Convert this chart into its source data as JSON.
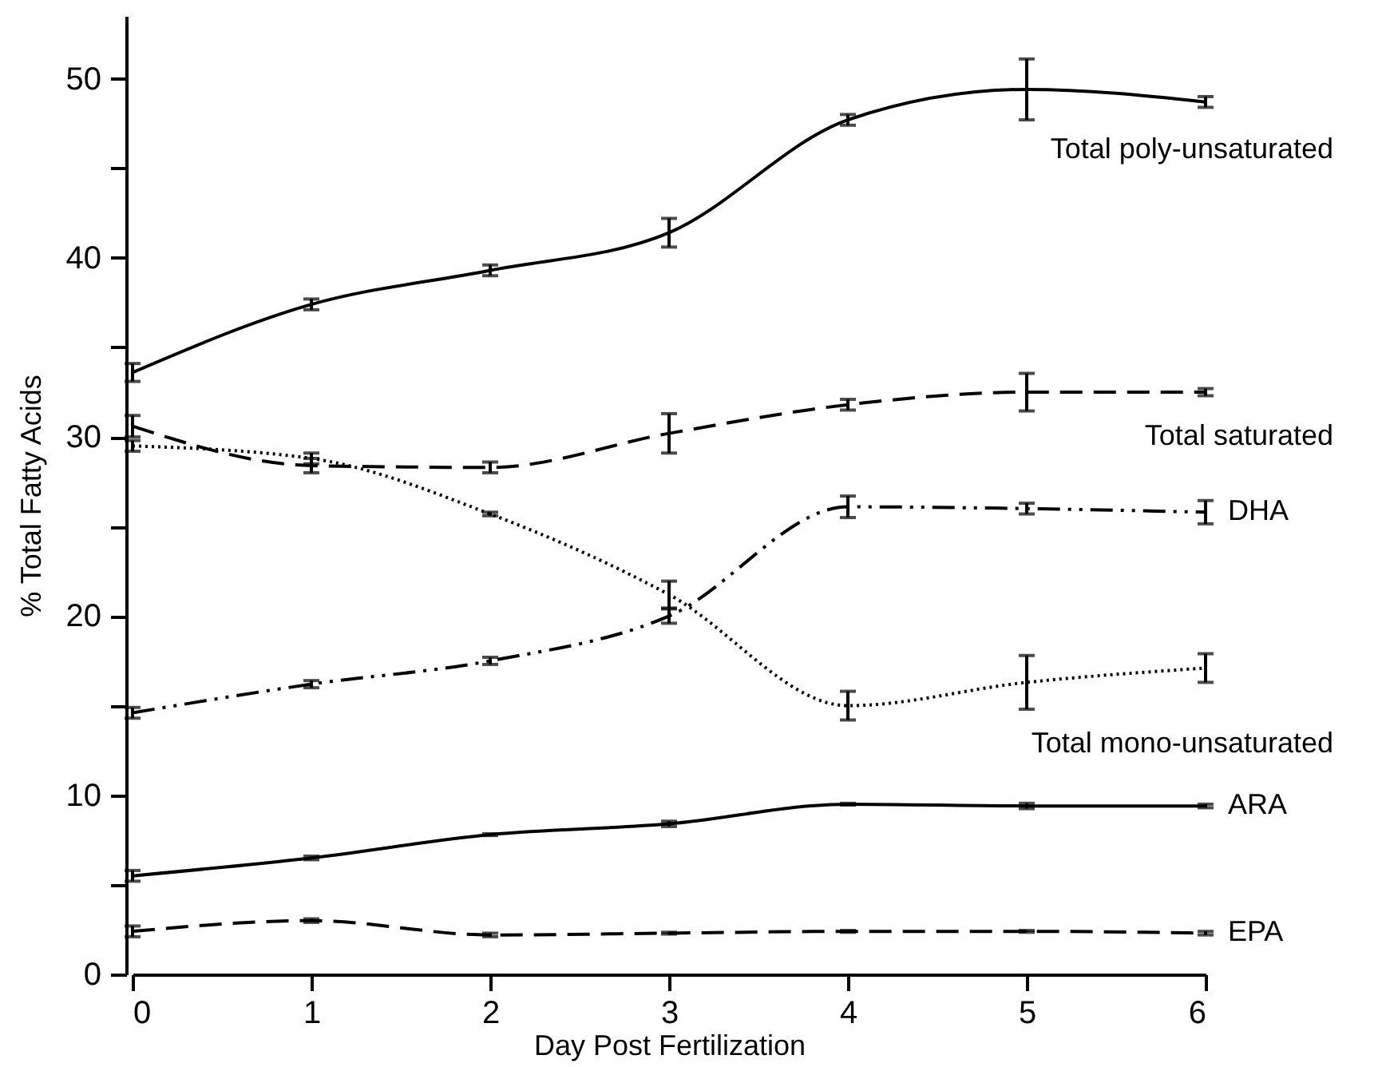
{
  "chart_data": {
    "type": "line",
    "xlabel": "Day Post Fertilization",
    "ylabel": "% Total Fatty Acids",
    "x": [
      0,
      1,
      2,
      3,
      4,
      5,
      6
    ],
    "xlim": [
      0,
      6
    ],
    "xticks": [
      0,
      1,
      2,
      3,
      4,
      5,
      6
    ],
    "ylim": [
      0,
      53.5
    ],
    "yticks": [
      0,
      {
        "value": 5,
        "label": null
      },
      10,
      {
        "value": 15,
        "label": null
      },
      20,
      {
        "value": 25,
        "label": null
      },
      30,
      {
        "value": 35,
        "label": null
      },
      40,
      {
        "value": 45,
        "label": null
      },
      50
    ],
    "grid": false,
    "legend": false,
    "marker": "none",
    "series": [
      {
        "name": "Total poly-unsaturated",
        "color": "#000000",
        "line_style": "solid",
        "values": [
          33.6,
          37.4,
          39.3,
          41.4,
          47.7,
          49.4,
          48.7
        ],
        "errors": [
          0.5,
          0.3,
          0.3,
          0.8,
          0.3,
          1.7,
          0.3
        ]
      },
      {
        "name": "Total saturated",
        "color": "#000000",
        "line_style": "dashed",
        "values": [
          30.6,
          28.4,
          28.3,
          30.2,
          31.8,
          32.5,
          32.5
        ],
        "errors": [
          0.6,
          0.4,
          0.3,
          1.1,
          0.3,
          1.05,
          0.2
        ]
      },
      {
        "name": "DHA",
        "color": "#000000",
        "line_style": "dashdot",
        "values": [
          14.6,
          16.2,
          17.5,
          20.0,
          26.1,
          26.0,
          25.8
        ],
        "errors": [
          0.3,
          0.2,
          0.2,
          0.4,
          0.6,
          0.3,
          0.65
        ]
      },
      {
        "name": "Total mono-unsaturated",
        "color": "#000000",
        "line_style": "dotted",
        "values": [
          29.5,
          28.8,
          25.7,
          21.2,
          15.0,
          16.3,
          17.1
        ],
        "errors": [
          0.3,
          0.3,
          0.1,
          0.75,
          0.8,
          1.5,
          0.8
        ]
      },
      {
        "name": "ARA",
        "color": "#000000",
        "line_style": "solid",
        "values": [
          5.5,
          6.5,
          7.8,
          8.4,
          9.5,
          9.4,
          9.4
        ],
        "errors": [
          0.3,
          0.1,
          0.05,
          0.15,
          0.05,
          0.15,
          0.1
        ]
      },
      {
        "name": "EPA",
        "color": "#000000",
        "line_style": "dashed",
        "values": [
          2.4,
          3.0,
          2.2,
          2.3,
          2.4,
          2.4,
          2.3
        ],
        "errors": [
          0.3,
          0.1,
          0.1,
          0.05,
          0.05,
          0.05,
          0.1
        ]
      }
    ]
  }
}
